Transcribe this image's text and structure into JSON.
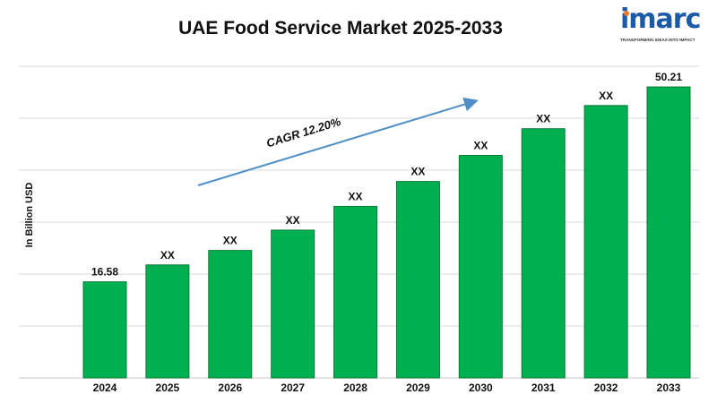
{
  "title": "UAE Food Service Market 2025-2033",
  "logo": {
    "brand": "imarc",
    "tagline": "TRANSFORMING IDEAS INTO IMPACT"
  },
  "chart_data": {
    "type": "bar",
    "title": "UAE Food Service Market 2025-2033",
    "ylabel": "In Billion USD",
    "xlabel": "",
    "categories": [
      "2024",
      "2025",
      "2026",
      "2027",
      "2028",
      "2029",
      "2030",
      "2031",
      "2032",
      "2033"
    ],
    "values": [
      16.58,
      19.5,
      22.0,
      25.5,
      29.6,
      33.9,
      38.4,
      43.0,
      47.0,
      50.21
    ],
    "data_labels": [
      "16.58",
      "XX",
      "XX",
      "XX",
      "XX",
      "XX",
      "XX",
      "XX",
      "XX",
      "50.21"
    ],
    "ylim": [
      0,
      53
    ],
    "grid": true,
    "annotation": "CAGR 12.20%",
    "colors": {
      "bar": "#00b050",
      "bar_edge": "#0a7a35",
      "arrow": "#4f8fc8",
      "grid": "#d9d9d9"
    }
  }
}
